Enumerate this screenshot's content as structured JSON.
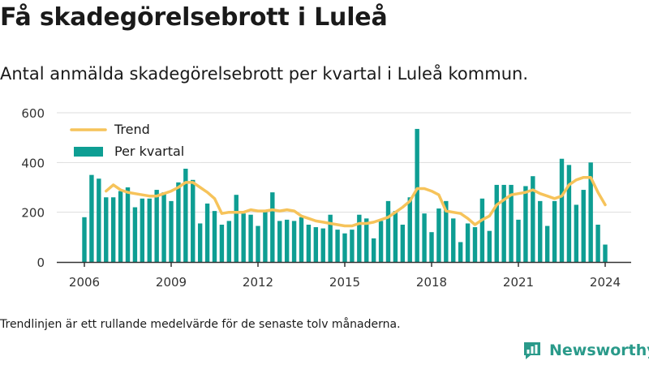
{
  "header": {
    "title": "Få skadegörelsebrott i Luleå",
    "subtitle": "Antal anmälda skadegörelsebrott per kvartal i Luleå kommun."
  },
  "footer": {
    "note": "Trendlinjen är ett rullande medelvärde för de senaste tolv månaderna.",
    "brand": "Newsworthy"
  },
  "colors": {
    "bars": "#0e9e93",
    "trend": "#f6c35a",
    "axis": "#333333",
    "grid": "#dddddd"
  },
  "chart_data": {
    "type": "bar",
    "x_start": "2006 Q1",
    "x_step": "quarter",
    "xticks": [
      "2006",
      "2009",
      "2012",
      "2015",
      "2018",
      "2021",
      "2024"
    ],
    "ylim": [
      0,
      600
    ],
    "yticks": [
      0,
      200,
      400,
      600
    ],
    "legend_position": "top-left",
    "series": [
      {
        "name": "Per kvartal",
        "type": "bar",
        "values": [
          180,
          350,
          335,
          260,
          260,
          285,
          300,
          220,
          255,
          255,
          290,
          280,
          245,
          320,
          375,
          330,
          155,
          235,
          205,
          150,
          165,
          270,
          195,
          190,
          145,
          210,
          280,
          165,
          170,
          165,
          180,
          150,
          140,
          135,
          190,
          130,
          115,
          130,
          190,
          175,
          95,
          165,
          245,
          205,
          150,
          260,
          535,
          195,
          120,
          215,
          245,
          175,
          80,
          155,
          140,
          255,
          125,
          310,
          310,
          310,
          170,
          305,
          345,
          245,
          145,
          245,
          415,
          390,
          230,
          290,
          400,
          150,
          70
        ]
      },
      {
        "name": "Trend",
        "type": "line",
        "values": [
          null,
          null,
          null,
          285,
          310,
          290,
          280,
          275,
          270,
          265,
          265,
          275,
          285,
          300,
          320,
          320,
          300,
          280,
          255,
          195,
          200,
          200,
          200,
          210,
          205,
          205,
          210,
          205,
          210,
          205,
          185,
          175,
          165,
          160,
          155,
          150,
          145,
          145,
          155,
          155,
          160,
          170,
          180,
          200,
          220,
          245,
          295,
          295,
          285,
          270,
          205,
          200,
          195,
          175,
          150,
          170,
          185,
          230,
          250,
          270,
          275,
          280,
          290,
          275,
          265,
          255,
          265,
          310,
          330,
          340,
          340,
          280,
          230
        ]
      }
    ]
  }
}
